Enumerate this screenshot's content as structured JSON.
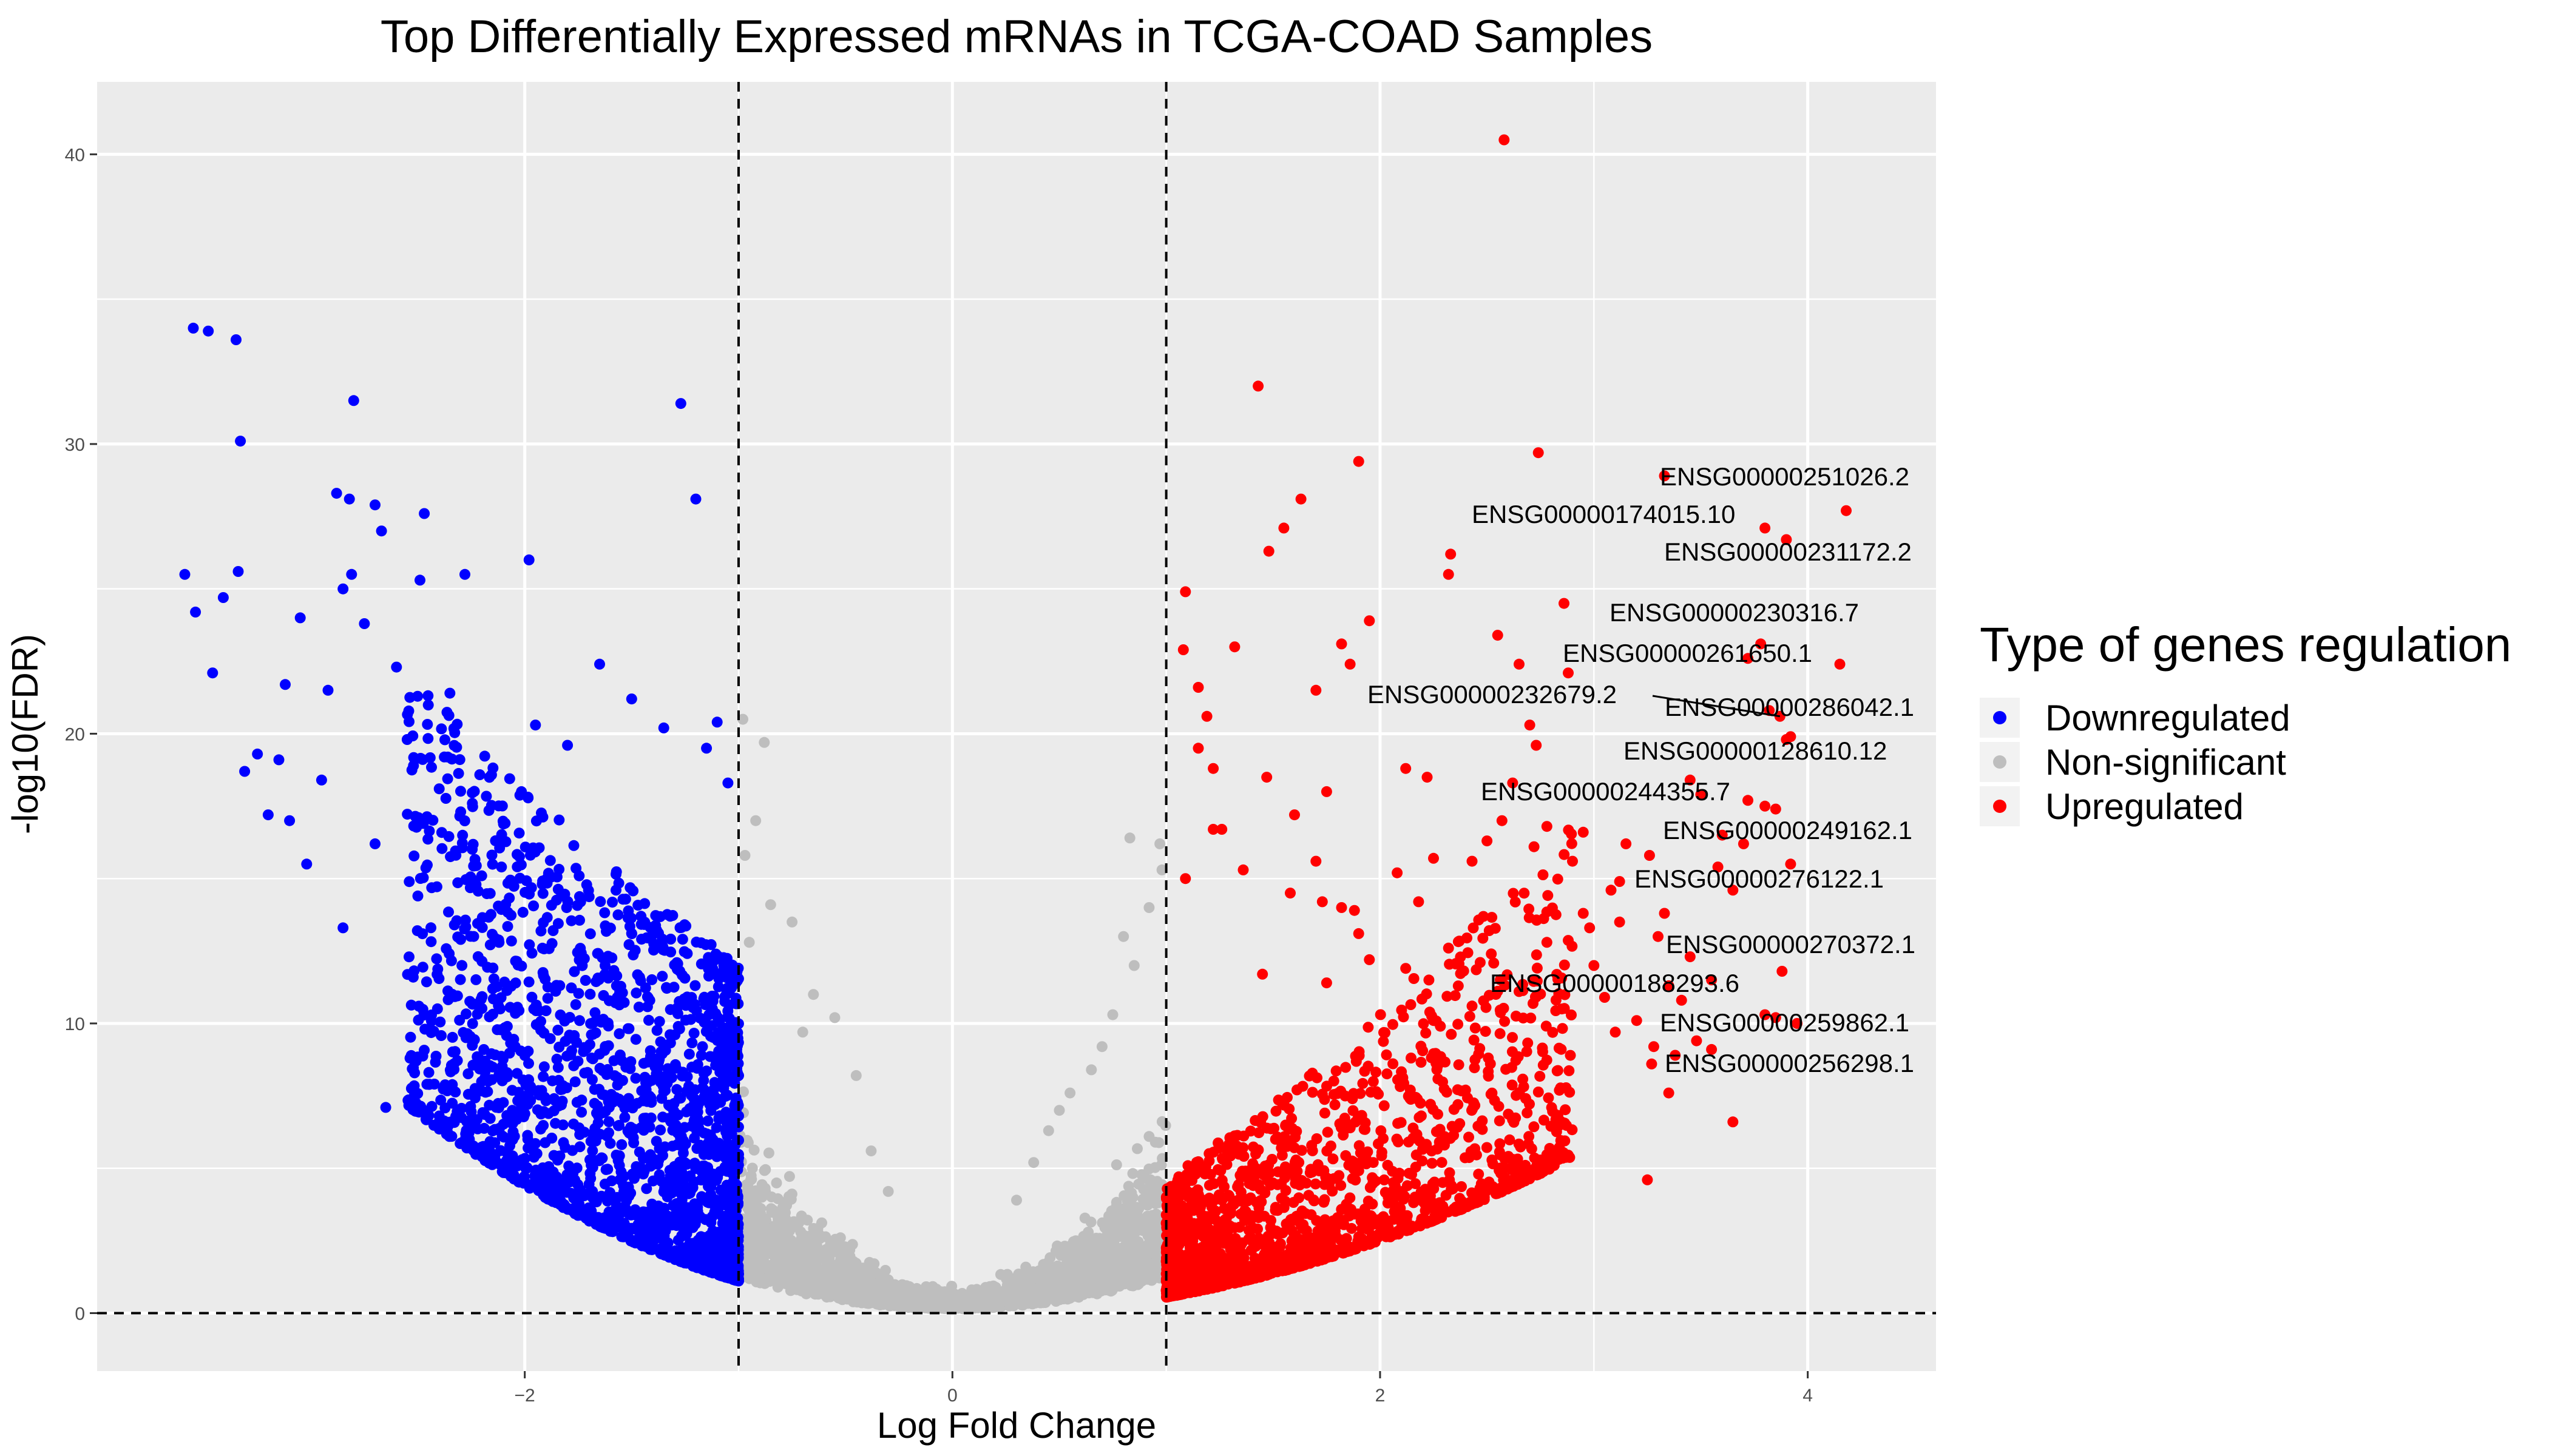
{
  "chart_data": {
    "type": "scatter",
    "title": "Top Differentially Expressed mRNAs in TCGA-COAD Samples",
    "xlabel": "Log Fold Change",
    "ylabel": "-log10(FDR)",
    "xlim": [
      -4.0,
      4.6
    ],
    "ylim": [
      -2.0,
      42.5
    ],
    "x_ticks": [
      -2,
      0,
      2,
      4
    ],
    "y_ticks": [
      0,
      10,
      20,
      30,
      40
    ],
    "grid": true,
    "legend": {
      "title": "Type of genes regulation",
      "position": "right",
      "entries": [
        {
          "key": "down",
          "label": "Downregulated",
          "color": "#0000ff"
        },
        {
          "key": "ns",
          "label": "Non-significant",
          "color": "#bebebe"
        },
        {
          "key": "up",
          "label": "Upregulated",
          "color": "#ff0000"
        }
      ]
    },
    "thresholds": {
      "vertical": [
        -1,
        1
      ],
      "horizontal": [
        0
      ],
      "line_style": "dashed"
    },
    "colors": {
      "panel": "#ebebeb",
      "grid": "#ffffff",
      "down": "#0000ff",
      "ns": "#bebebe",
      "up": "#ff0000"
    },
    "highlight_points": {
      "down": [
        [
          -3.55,
          34.0
        ],
        [
          -3.48,
          33.9
        ],
        [
          -3.35,
          33.6
        ],
        [
          -3.33,
          30.1
        ],
        [
          -2.8,
          31.5
        ],
        [
          -1.27,
          31.4
        ],
        [
          -1.2,
          28.1
        ],
        [
          -2.88,
          28.3
        ],
        [
          -2.82,
          28.1
        ],
        [
          -2.7,
          27.9
        ],
        [
          -2.67,
          27.0
        ],
        [
          -2.47,
          27.6
        ],
        [
          -1.98,
          26.0
        ],
        [
          -3.59,
          25.5
        ],
        [
          -3.34,
          25.6
        ],
        [
          -3.54,
          24.2
        ],
        [
          -3.41,
          24.7
        ],
        [
          -3.46,
          22.1
        ],
        [
          -3.31,
          18.7
        ],
        [
          -2.85,
          25.0
        ],
        [
          -2.81,
          25.5
        ],
        [
          -2.49,
          25.3
        ],
        [
          -2.28,
          25.5
        ],
        [
          -2.65,
          7.1
        ],
        [
          -2.2,
          5.4
        ],
        [
          -3.25,
          19.3
        ],
        [
          -3.15,
          19.1
        ],
        [
          -3.1,
          17.0
        ],
        [
          -3.02,
          15.5
        ],
        [
          -2.85,
          13.3
        ],
        [
          -2.95,
          18.4
        ],
        [
          -3.2,
          17.2
        ],
        [
          -3.05,
          24.0
        ],
        [
          -3.12,
          21.7
        ],
        [
          -2.92,
          21.5
        ],
        [
          -2.75,
          23.8
        ],
        [
          -2.6,
          22.3
        ],
        [
          -2.35,
          21.4
        ],
        [
          -2.55,
          19.8
        ],
        [
          -2.4,
          18.1
        ],
        [
          -2.7,
          16.2
        ],
        [
          -2.5,
          14.4
        ],
        [
          -2.3,
          12.9
        ],
        [
          -2.15,
          11.2
        ],
        [
          -1.95,
          20.3
        ],
        [
          -1.8,
          19.6
        ],
        [
          -1.65,
          22.4
        ],
        [
          -1.5,
          21.2
        ],
        [
          -1.35,
          20.2
        ],
        [
          -1.1,
          20.4
        ],
        [
          -1.05,
          18.3
        ],
        [
          -1.15,
          19.5
        ]
      ],
      "ns": [
        [
          -0.98,
          20.5
        ],
        [
          -0.88,
          19.7
        ],
        [
          -0.92,
          17.0
        ],
        [
          -0.97,
          15.8
        ],
        [
          -0.85,
          14.1
        ],
        [
          -0.75,
          13.5
        ],
        [
          -0.95,
          12.8
        ],
        [
          -0.65,
          11.0
        ],
        [
          -0.55,
          10.2
        ],
        [
          -0.7,
          9.7
        ],
        [
          -0.45,
          8.2
        ],
        [
          0.7,
          9.2
        ],
        [
          0.75,
          10.3
        ],
        [
          0.85,
          12.0
        ],
        [
          0.8,
          13.0
        ],
        [
          0.92,
          14.0
        ],
        [
          0.98,
          15.3
        ],
        [
          0.97,
          16.2
        ],
        [
          0.83,
          16.4
        ],
        [
          0.65,
          8.4
        ],
        [
          0.55,
          7.6
        ],
        [
          0.45,
          6.3
        ],
        [
          0.5,
          7.0
        ],
        [
          0.3,
          3.9
        ],
        [
          -0.3,
          4.2
        ],
        [
          0.38,
          5.2
        ],
        [
          -0.38,
          5.6
        ]
      ],
      "up": [
        [
          2.58,
          40.5
        ],
        [
          1.43,
          32.0
        ],
        [
          2.74,
          29.7
        ],
        [
          1.9,
          29.4
        ],
        [
          1.63,
          28.1
        ],
        [
          1.55,
          27.1
        ],
        [
          1.48,
          26.3
        ],
        [
          2.33,
          26.2
        ],
        [
          2.32,
          25.5
        ],
        [
          1.09,
          24.9
        ],
        [
          2.86,
          24.5
        ],
        [
          1.95,
          23.9
        ],
        [
          1.82,
          23.1
        ],
        [
          2.55,
          23.4
        ],
        [
          1.32,
          23.0
        ],
        [
          1.08,
          22.9
        ],
        [
          2.88,
          22.1
        ],
        [
          2.65,
          22.4
        ],
        [
          1.7,
          21.5
        ],
        [
          1.15,
          21.6
        ],
        [
          1.86,
          22.4
        ],
        [
          1.19,
          20.6
        ],
        [
          1.15,
          19.5
        ],
        [
          1.22,
          18.8
        ],
        [
          1.47,
          18.5
        ],
        [
          2.12,
          18.8
        ],
        [
          2.22,
          18.5
        ],
        [
          1.75,
          18.0
        ],
        [
          2.62,
          18.3
        ],
        [
          2.73,
          19.6
        ],
        [
          2.7,
          20.3
        ],
        [
          1.6,
          17.2
        ],
        [
          2.57,
          17.0
        ],
        [
          2.78,
          16.8
        ],
        [
          2.5,
          16.3
        ],
        [
          2.95,
          16.6
        ],
        [
          2.72,
          16.1
        ],
        [
          1.22,
          16.7
        ],
        [
          1.26,
          16.7
        ],
        [
          1.09,
          15.0
        ],
        [
          1.36,
          15.3
        ],
        [
          1.7,
          15.6
        ],
        [
          2.43,
          15.6
        ],
        [
          2.25,
          15.7
        ],
        [
          2.08,
          15.2
        ],
        [
          1.58,
          14.5
        ],
        [
          1.73,
          14.2
        ],
        [
          1.82,
          14.0
        ],
        [
          1.88,
          13.9
        ],
        [
          2.18,
          14.2
        ],
        [
          2.9,
          15.6
        ],
        [
          1.9,
          13.1
        ],
        [
          2.32,
          12.6
        ],
        [
          2.78,
          12.8
        ],
        [
          2.52,
          12.4
        ],
        [
          1.95,
          12.2
        ],
        [
          2.12,
          11.9
        ],
        [
          1.45,
          11.7
        ],
        [
          1.75,
          11.4
        ],
        [
          2.65,
          11.1
        ],
        [
          2.43,
          10.6
        ],
        [
          2.25,
          10.1
        ],
        [
          3.0,
          12.0
        ],
        [
          3.08,
          14.6
        ],
        [
          3.12,
          14.9
        ],
        [
          2.95,
          13.8
        ],
        [
          2.98,
          13.3
        ],
        [
          3.3,
          13.0
        ],
        [
          3.33,
          13.8
        ],
        [
          3.15,
          16.2
        ],
        [
          3.26,
          15.8
        ],
        [
          3.12,
          13.5
        ],
        [
          3.45,
          12.3
        ],
        [
          3.6,
          16.5
        ],
        [
          3.7,
          16.2
        ],
        [
          3.58,
          15.4
        ],
        [
          3.65,
          14.6
        ],
        [
          3.88,
          11.8
        ],
        [
          3.41,
          10.8
        ],
        [
          3.35,
          11.3
        ],
        [
          3.8,
          10.3
        ],
        [
          3.85,
          10.2
        ],
        [
          3.95,
          10.0
        ],
        [
          3.55,
          9.1
        ],
        [
          3.48,
          9.4
        ],
        [
          3.28,
          9.2
        ],
        [
          3.27,
          8.6
        ],
        [
          3.35,
          7.6
        ],
        [
          3.65,
          6.6
        ],
        [
          3.25,
          4.6
        ],
        [
          3.38,
          8.9
        ],
        [
          3.1,
          9.7
        ],
        [
          3.2,
          10.1
        ],
        [
          3.05,
          10.9
        ],
        [
          3.55,
          11.5
        ],
        [
          3.72,
          17.7
        ],
        [
          3.8,
          17.5
        ],
        [
          3.85,
          17.4
        ],
        [
          3.9,
          19.8
        ],
        [
          3.92,
          19.9
        ],
        [
          3.82,
          20.8
        ],
        [
          3.87,
          20.6
        ],
        [
          3.78,
          23.1
        ],
        [
          3.72,
          22.6
        ],
        [
          4.15,
          22.4
        ],
        [
          3.9,
          26.7
        ],
        [
          3.8,
          27.1
        ],
        [
          3.33,
          28.9
        ],
        [
          4.18,
          27.7
        ],
        [
          3.92,
          15.5
        ],
        [
          3.45,
          18.4
        ],
        [
          3.5,
          17.9
        ]
      ]
    },
    "annotations": [
      {
        "gene": "ENSG00000251026.2",
        "x": 4.18,
        "y": 27.7
      },
      {
        "gene": "ENSG00000174015.10",
        "x": 3.8,
        "y": 27.1
      },
      {
        "gene": "ENSG00000231172.2",
        "x": 3.9,
        "y": 26.7
      },
      {
        "gene": "ENSG00000230316.7",
        "x": 3.78,
        "y": 23.1
      },
      {
        "gene": "ENSG00000261650.1",
        "x": 4.15,
        "y": 22.4
      },
      {
        "gene": "ENSG00000232679.2",
        "x": 3.87,
        "y": 20.6
      },
      {
        "gene": "ENSG00000286042.1",
        "x": 3.82,
        "y": 20.8
      },
      {
        "gene": "ENSG00000128610.12",
        "x": 3.9,
        "y": 19.8
      },
      {
        "gene": "ENSG00000244355.7",
        "x": 3.72,
        "y": 17.7
      },
      {
        "gene": "ENSG00000249162.1",
        "x": 3.6,
        "y": 16.5
      },
      {
        "gene": "ENSG00000276122.1",
        "x": 3.65,
        "y": 14.6
      },
      {
        "gene": "ENSG00000270372.1",
        "x": 3.88,
        "y": 11.8
      },
      {
        "gene": "ENSG00000188293.6",
        "x": 3.41,
        "y": 10.8
      },
      {
        "gene": "ENSG00000259862.1",
        "x": 3.95,
        "y": 10.0
      },
      {
        "gene": "ENSG00000256298.1",
        "x": 3.65,
        "y": 6.6
      }
    ]
  }
}
